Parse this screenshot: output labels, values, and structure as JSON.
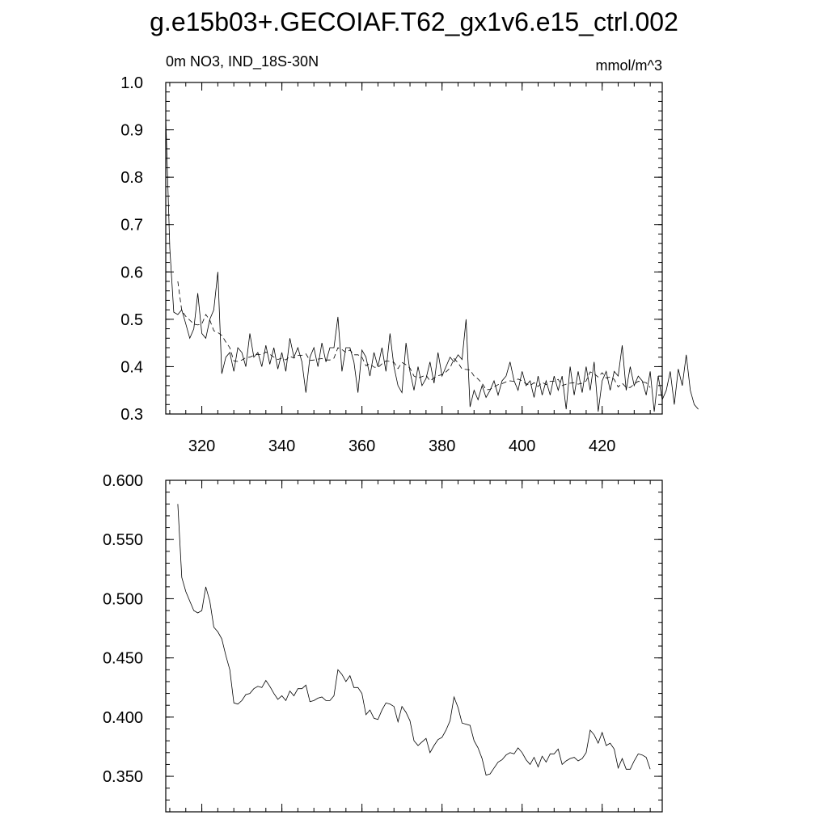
{
  "title": "g.e15b03+.GECOIAF.T62_gx1v6.e15_ctrl.002",
  "chart_data": [
    {
      "type": "line",
      "subtitle_left": "0m NO3, IND_18S-30N",
      "subtitle_right": "mmol/m^3",
      "xlim": [
        311,
        435
      ],
      "ylim": [
        0.3,
        1.0
      ],
      "x_ticks": [
        320,
        340,
        360,
        380,
        400,
        420
      ],
      "x_tick_labels": [
        "320",
        "340",
        "360",
        "380",
        "400",
        "420"
      ],
      "y_ticks": [
        0.3,
        0.4,
        0.5,
        0.6,
        0.7,
        0.8,
        0.9,
        1.0
      ],
      "y_tick_labels": [
        "0.3",
        "0.4",
        "0.5",
        "0.6",
        "0.7",
        "0.8",
        "0.9",
        "1.0"
      ],
      "grid": false,
      "series": [
        {
          "style": "solid",
          "x_start": 311,
          "x_step": 1,
          "values": [
            0.925,
            0.65,
            0.515,
            0.51,
            0.52,
            0.49,
            0.46,
            0.48,
            0.555,
            0.47,
            0.46,
            0.5,
            0.52,
            0.6,
            0.385,
            0.42,
            0.43,
            0.39,
            0.44,
            0.43,
            0.4,
            0.47,
            0.42,
            0.43,
            0.4,
            0.445,
            0.405,
            0.44,
            0.395,
            0.43,
            0.39,
            0.46,
            0.42,
            0.44,
            0.41,
            0.345,
            0.42,
            0.44,
            0.4,
            0.45,
            0.41,
            0.44,
            0.44,
            0.505,
            0.39,
            0.44,
            0.44,
            0.41,
            0.345,
            0.435,
            0.42,
            0.38,
            0.43,
            0.4,
            0.44,
            0.39,
            0.47,
            0.4,
            0.36,
            0.345,
            0.45,
            0.39,
            0.35,
            0.4,
            0.36,
            0.375,
            0.41,
            0.365,
            0.43,
            0.38,
            0.4,
            0.42,
            0.41,
            0.425,
            0.415,
            0.5,
            0.315,
            0.35,
            0.33,
            0.36,
            0.335,
            0.35,
            0.37,
            0.34,
            0.37,
            0.38,
            0.41,
            0.37,
            0.35,
            0.39,
            0.36,
            0.37,
            0.335,
            0.38,
            0.34,
            0.37,
            0.34,
            0.38,
            0.35,
            0.38,
            0.31,
            0.4,
            0.34,
            0.39,
            0.345,
            0.4,
            0.35,
            0.41,
            0.305,
            0.37,
            0.39,
            0.35,
            0.39,
            0.38,
            0.445,
            0.35,
            0.4,
            0.36,
            0.38,
            0.37,
            0.34,
            0.39,
            0.305,
            0.38,
            0.33,
            0.35,
            0.39,
            0.32,
            0.395,
            0.36,
            0.425,
            0.35,
            0.32,
            0.31
          ]
        },
        {
          "style": "dashed",
          "x_start": 314,
          "x_step": 1,
          "values": [
            0.58,
            0.518,
            0.506,
            0.498,
            0.49,
            0.488,
            0.49,
            0.51,
            0.498,
            0.476,
            0.472,
            0.466,
            0.452,
            0.44,
            0.412,
            0.411,
            0.414,
            0.419,
            0.42,
            0.424,
            0.426,
            0.425,
            0.431,
            0.426,
            0.42,
            0.415,
            0.418,
            0.414,
            0.422,
            0.418,
            0.424,
            0.424,
            0.427,
            0.413,
            0.414,
            0.416,
            0.417,
            0.414,
            0.414,
            0.418,
            0.44,
            0.436,
            0.43,
            0.435,
            0.425,
            0.425,
            0.42,
            0.402,
            0.406,
            0.399,
            0.398,
            0.406,
            0.412,
            0.411,
            0.409,
            0.396,
            0.409,
            0.404,
            0.397,
            0.38,
            0.376,
            0.379,
            0.382,
            0.37,
            0.376,
            0.381,
            0.383,
            0.389,
            0.397,
            0.417,
            0.408,
            0.395,
            0.394,
            0.393,
            0.38,
            0.374,
            0.365,
            0.351,
            0.352,
            0.357,
            0.362,
            0.364,
            0.368,
            0.37,
            0.369,
            0.374,
            0.37,
            0.364,
            0.36,
            0.366,
            0.358,
            0.367,
            0.362,
            0.369,
            0.369,
            0.373,
            0.36,
            0.363,
            0.365,
            0.366,
            0.363,
            0.365,
            0.37,
            0.389,
            0.385,
            0.378,
            0.387,
            0.376,
            0.378,
            0.373,
            0.357,
            0.365,
            0.356,
            0.356,
            0.363,
            0.369,
            0.368,
            0.366,
            0.356
          ]
        }
      ]
    },
    {
      "type": "line",
      "xlim": [
        311,
        435
      ],
      "ylim": [
        0.32,
        0.6
      ],
      "x_ticks": [
        320,
        340,
        360,
        380,
        400,
        420
      ],
      "y_ticks": [
        0.35,
        0.4,
        0.45,
        0.5,
        0.55,
        0.6
      ],
      "y_tick_labels": [
        "0.350",
        "0.400",
        "0.450",
        "0.500",
        "0.550",
        "0.600"
      ],
      "grid": false,
      "series": [
        {
          "style": "solid",
          "x_start": 314,
          "x_step": 1,
          "values": [
            0.58,
            0.518,
            0.506,
            0.498,
            0.49,
            0.488,
            0.49,
            0.51,
            0.498,
            0.476,
            0.472,
            0.466,
            0.452,
            0.44,
            0.412,
            0.411,
            0.414,
            0.419,
            0.42,
            0.424,
            0.426,
            0.425,
            0.431,
            0.426,
            0.42,
            0.415,
            0.418,
            0.414,
            0.422,
            0.418,
            0.424,
            0.424,
            0.427,
            0.413,
            0.414,
            0.416,
            0.417,
            0.414,
            0.414,
            0.418,
            0.44,
            0.436,
            0.43,
            0.435,
            0.425,
            0.425,
            0.42,
            0.402,
            0.406,
            0.399,
            0.398,
            0.406,
            0.412,
            0.411,
            0.409,
            0.396,
            0.409,
            0.404,
            0.397,
            0.38,
            0.376,
            0.379,
            0.382,
            0.37,
            0.376,
            0.381,
            0.383,
            0.389,
            0.397,
            0.417,
            0.408,
            0.395,
            0.394,
            0.393,
            0.38,
            0.374,
            0.365,
            0.351,
            0.352,
            0.357,
            0.362,
            0.364,
            0.368,
            0.37,
            0.369,
            0.374,
            0.37,
            0.364,
            0.36,
            0.366,
            0.358,
            0.367,
            0.362,
            0.369,
            0.369,
            0.373,
            0.36,
            0.363,
            0.365,
            0.366,
            0.363,
            0.365,
            0.37,
            0.389,
            0.385,
            0.378,
            0.387,
            0.376,
            0.378,
            0.373,
            0.357,
            0.365,
            0.356,
            0.356,
            0.363,
            0.369,
            0.368,
            0.366,
            0.356
          ]
        }
      ]
    }
  ]
}
